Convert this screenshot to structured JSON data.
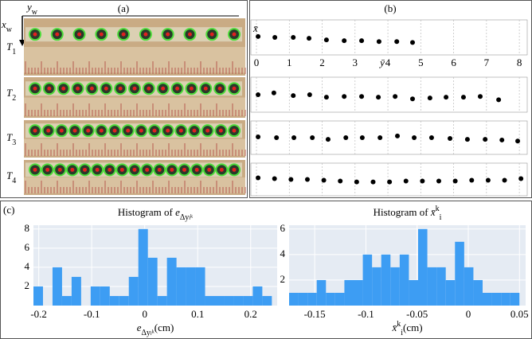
{
  "panels": {
    "a": "(a)",
    "b": "(b)",
    "c": "(c)"
  },
  "photo_panel": {
    "x_axis": {
      "symbol": "x",
      "sub": "w"
    },
    "y_axis": {
      "symbol": "y",
      "sub": "w"
    },
    "rows": [
      {
        "symbol": "T",
        "sub": "1"
      },
      {
        "symbol": "T",
        "sub": "2"
      },
      {
        "symbol": "T",
        "sub": "3"
      },
      {
        "symbol": "T",
        "sub": "4"
      }
    ]
  },
  "chart_data": [
    {
      "type": "scatter",
      "ylabel": "x̄",
      "xlabel": "ȳ",
      "color": "#000000",
      "grid": true,
      "x": [
        0.05,
        0.56,
        1.12,
        1.6,
        2.13,
        2.67,
        3.2,
        3.73,
        4.27,
        4.75
      ],
      "values": [
        0.05,
        0,
        0,
        -0.05,
        -0.14,
        -0.19,
        -0.19,
        -0.24,
        -0.24,
        -0.29
      ],
      "xlim": [
        -0.17,
        8.24
      ],
      "ylim": [
        -1,
        1
      ],
      "xticks": [
        0,
        1,
        2,
        3,
        4,
        5,
        6,
        7,
        8
      ]
    },
    {
      "type": "scatter",
      "color": "#000000",
      "grid": true,
      "x": [
        0.05,
        0.53,
        1.12,
        1.62,
        2.13,
        2.67,
        3.2,
        3.71,
        4.22,
        4.75,
        5.28,
        5.77,
        6.3,
        6.81,
        7.37
      ],
      "values": [
        0,
        0.1,
        -0.05,
        0,
        -0.14,
        -0.1,
        -0.1,
        -0.14,
        -0.1,
        -0.24,
        -0.19,
        -0.14,
        -0.14,
        -0.1,
        -0.29
      ],
      "xlim": [
        -0.17,
        8.24
      ],
      "ylim": [
        -1,
        1
      ]
    },
    {
      "type": "scatter",
      "color": "#000000",
      "grid": true,
      "x": [
        0.05,
        0.61,
        1.14,
        1.7,
        2.18,
        2.72,
        3.22,
        3.76,
        4.29,
        4.8,
        5.33,
        5.89,
        6.42,
        6.96,
        7.47,
        7.95
      ],
      "values": [
        0.05,
        0,
        0,
        0,
        -0.1,
        0,
        0,
        0,
        0.1,
        0,
        0,
        -0.05,
        -0.1,
        -0.1,
        -0.14,
        -0.2
      ],
      "xlim": [
        -0.17,
        8.24
      ],
      "ylim": [
        -1,
        1
      ]
    },
    {
      "type": "scatter",
      "color": "#000000",
      "grid": true,
      "x": [
        0.05,
        0.55,
        1.05,
        1.55,
        2.05,
        2.55,
        3.05,
        3.55,
        4.05,
        4.55,
        5.05,
        5.55,
        6.05,
        6.55,
        7.05,
        7.55,
        8.05
      ],
      "values": [
        0.1,
        0.05,
        0,
        0,
        -0.05,
        -0.1,
        -0.15,
        -0.15,
        -0.15,
        -0.1,
        -0.1,
        -0.1,
        -0.1,
        -0.05,
        -0.05,
        -0.05,
        0.05
      ],
      "xlim": [
        -0.17,
        8.24
      ],
      "ylim": [
        -1,
        1
      ]
    },
    {
      "type": "histogram",
      "title": {
        "text": "Histogram of ",
        "symbol": "e",
        "sub": "Δyₗᵏ"
      },
      "xlabel": {
        "symbol": "e",
        "sub": "Δyₗᵏ",
        "unit": "(cm)"
      },
      "bins": [
        -0.21,
        -0.192,
        -0.174,
        -0.156,
        -0.138,
        -0.12,
        -0.102,
        -0.084,
        -0.066,
        -0.048,
        -0.03,
        -0.012,
        0.006,
        0.024,
        0.042,
        0.06,
        0.078,
        0.096,
        0.114,
        0.132,
        0.15,
        0.168,
        0.186,
        0.204,
        0.222,
        0.24
      ],
      "values": [
        2,
        0,
        4,
        1,
        3,
        0,
        2,
        2,
        1,
        1,
        3,
        8,
        5,
        1,
        5,
        4,
        4,
        4,
        1,
        1,
        1,
        1,
        1,
        2,
        1
      ],
      "xlim": [
        -0.21,
        0.25
      ],
      "ylim": [
        0,
        8.4
      ],
      "xticks": [
        -0.2,
        -0.1,
        0,
        0.1,
        0.2
      ],
      "yticks": [
        2,
        4,
        6,
        8
      ],
      "color": "#3d9df3",
      "background": "#e5ebf3",
      "grid": true
    },
    {
      "type": "histogram",
      "title": {
        "text": "Histogram of ",
        "symbol": "x̄",
        "sup": "k",
        "sub": "i"
      },
      "xlabel": {
        "symbol": "x̄",
        "sup": "k",
        "sub": "i",
        "unit": "(cm)"
      },
      "bins": [
        -0.175,
        -0.166,
        -0.157,
        -0.148,
        -0.139,
        -0.13,
        -0.121,
        -0.112,
        -0.103,
        -0.094,
        -0.085,
        -0.076,
        -0.067,
        -0.058,
        -0.049,
        -0.04,
        -0.031,
        -0.022,
        -0.013,
        -0.004,
        0.005,
        0.014,
        0.023,
        0.032,
        0.041,
        0.05
      ],
      "values": [
        1,
        1,
        1,
        2,
        1,
        1,
        2,
        2,
        4,
        3,
        4,
        3,
        4,
        2,
        6,
        3,
        3,
        2,
        5,
        3,
        2,
        1,
        1,
        1,
        1
      ],
      "xlim": [
        -0.175,
        0.056
      ],
      "ylim": [
        0,
        6.3
      ],
      "xticks": [
        -0.15,
        -0.1,
        -0.05,
        0,
        0.05
      ],
      "yticks": [
        2,
        4,
        6
      ],
      "color": "#3d9df3",
      "background": "#e5ebf3",
      "grid": true
    }
  ]
}
